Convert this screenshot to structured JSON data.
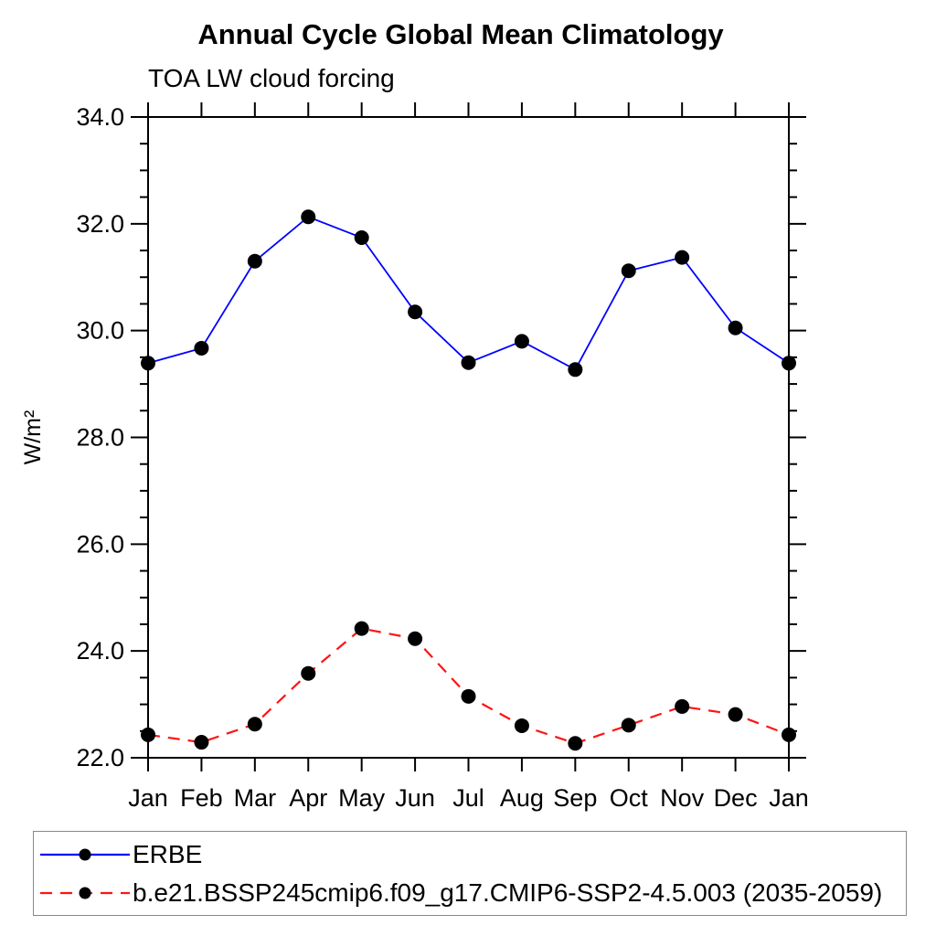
{
  "chart_data": {
    "type": "line",
    "title": "Annual Cycle Global Mean Climatology",
    "subtitle": "TOA LW cloud forcing",
    "ylabel": "W/m²",
    "xlabel": "",
    "x_categories": [
      "Jan",
      "Feb",
      "Mar",
      "Apr",
      "May",
      "Jun",
      "Jul",
      "Aug",
      "Sep",
      "Oct",
      "Nov",
      "Dec",
      "Jan"
    ],
    "ylim": [
      22.0,
      34.0
    ],
    "y_major_ticks": [
      22.0,
      24.0,
      26.0,
      28.0,
      30.0,
      32.0,
      34.0
    ],
    "y_tick_labels": [
      "22.0",
      "24.0",
      "26.0",
      "28.0",
      "30.0",
      "32.0",
      "34.0"
    ],
    "y_minor_step": 0.5,
    "grid": "off",
    "frame_color": "#000000",
    "marker": "filled-circle",
    "marker_color": "#000000",
    "series": [
      {
        "name": "ERBE",
        "color": "#0000ff",
        "style": "solid",
        "values": [
          29.39,
          29.67,
          31.3,
          32.13,
          31.74,
          30.35,
          29.4,
          29.8,
          29.27,
          31.12,
          31.37,
          30.05,
          29.39
        ]
      },
      {
        "name": "b.e21.BSSP245cmip6.f09_g17.CMIP6-SSP2-4.5.003 (2035-2059)",
        "color": "#ff1414",
        "style": "dashed",
        "values": [
          22.43,
          22.29,
          22.63,
          23.58,
          24.42,
          24.23,
          23.15,
          22.6,
          22.27,
          22.61,
          22.96,
          22.81,
          22.43
        ]
      }
    ],
    "legend_position": "bottom-left-box"
  },
  "legend": {
    "entries": [
      {
        "label": "ERBE",
        "color": "#0000ff",
        "style": "solid",
        "marker_color": "#000000"
      },
      {
        "label": "b.e21.BSSP245cmip6.f09_g17.CMIP6-SSP2-4.5.003 (2035-2059)",
        "color": "#ff1414",
        "style": "dashed",
        "marker_color": "#000000"
      }
    ]
  }
}
